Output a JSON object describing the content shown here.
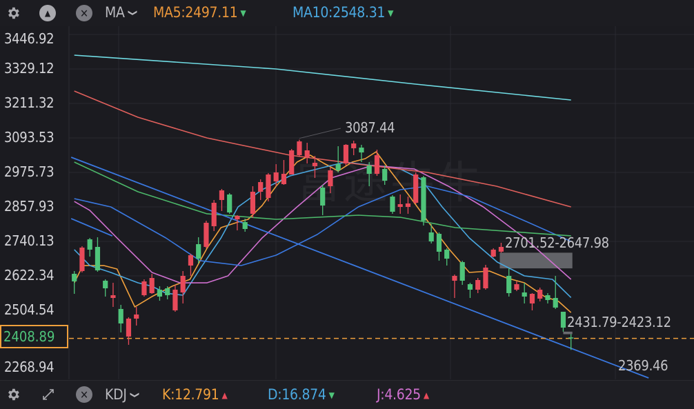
{
  "top_bar": {
    "indicator_label": "MA",
    "ma5": {
      "label": "MA5:2497.11",
      "trend": "down",
      "color": "#e8953a"
    },
    "ma10": {
      "label": "MA10:2548.31",
      "trend": "down",
      "color": "#4aa8e0"
    }
  },
  "bottom_bar": {
    "indicator_label": "KDJ",
    "k": {
      "label": "K:12.791",
      "trend": "up",
      "color": "#f0a03c"
    },
    "d": {
      "label": "D:16.874",
      "trend": "down",
      "color": "#4aa8e0"
    },
    "j": {
      "label": "J:4.625",
      "trend": "up",
      "color": "#d070d0"
    }
  },
  "watermark": "富途牛牛",
  "colors": {
    "up": "#e84a5a",
    "down": "#4fc47a",
    "background": "#1b1b20",
    "current_price": "#f0a03c"
  },
  "chart_data": {
    "type": "candlestick",
    "y_axis_ticks": [
      "3446.92",
      "3329.12",
      "3211.32",
      "3093.53",
      "2975.73",
      "2857.93",
      "2740.13",
      "2622.34",
      "2504.54",
      "2268.94"
    ],
    "ylim": [
      2268.94,
      3446.92
    ],
    "current_price": "2408.89",
    "grid": true,
    "annotations": {
      "high": "3087.44",
      "gap_upper": "2701.52-2647.98",
      "gap_lower": "2431.79-2423.12",
      "low": "2369.46"
    },
    "candles": [
      [
        2629.4,
        2603.5,
        2638.8,
        2561.0
      ],
      [
        2638.8,
        2718.9,
        2723.6,
        2634.1
      ],
      [
        2747.2,
        2711.9,
        2751.9,
        2688.3
      ],
      [
        2721.3,
        2641.1,
        2754.3,
        2636.4
      ],
      [
        2605.8,
        2579.9,
        2610.5,
        2551.6
      ],
      [
        2546.9,
        2556.3,
        2598.7,
        2516.3
      ],
      [
        2509.3,
        2459.8,
        2523.4,
        2429.2
      ],
      [
        2415.1,
        2476.3,
        2481.0,
        2386.8
      ],
      [
        2476.3,
        2490.4,
        2516.3,
        2452.7
      ],
      [
        2556.3,
        2603.5,
        2610.5,
        2551.6
      ],
      [
        2563.4,
        2615.2,
        2629.4,
        2561.0
      ],
      [
        2575.2,
        2551.6,
        2586.9,
        2537.5
      ],
      [
        2579.9,
        2556.3,
        2586.9,
        2542.2
      ],
      [
        2504.5,
        2575.2,
        2591.6,
        2499.8
      ],
      [
        2565.7,
        2622.3,
        2638.8,
        2528.1
      ],
      [
        2657.6,
        2693.0,
        2697.8,
        2622.3
      ],
      [
        2730.7,
        2681.2,
        2754.3,
        2664.7
      ],
      [
        2721.3,
        2803.7,
        2810.8,
        2716.6
      ],
      [
        2791.9,
        2872.0,
        2881.5,
        2775.4
      ],
      [
        2881.5,
        2914.4,
        2919.2,
        2843.8
      ],
      [
        2900.3,
        2839.1,
        2905.0,
        2834.4
      ],
      [
        2815.5,
        2827.3,
        2829.6,
        2777.8
      ],
      [
        2806.1,
        2782.5,
        2817.9,
        2773.1
      ],
      [
        2834.4,
        2909.7,
        2928.6,
        2820.2
      ],
      [
        2909.7,
        2942.7,
        2952.1,
        2881.5
      ],
      [
        2888.5,
        2968.6,
        2973.3,
        2876.7
      ],
      [
        2945.1,
        2975.7,
        3004.0,
        2928.6
      ],
      [
        2935.7,
        2971.0,
        3018.1,
        2933.3
      ],
      [
        2968.6,
        3051.1,
        3055.8,
        2968.6
      ],
      [
        3034.6,
        3081.7,
        3087.44,
        3032.2
      ],
      [
        3027.5,
        3051.1,
        3077.0,
        3006.3
      ],
      [
        2996.9,
        3008.7,
        3032.2,
        2956.9
      ],
      [
        2923.9,
        2862.6,
        2933.3,
        2829.6
      ],
      [
        2928.6,
        2982.8,
        2992.2,
        2905.0
      ],
      [
        3004.0,
        2982.8,
        3065.2,
        2975.7
      ],
      [
        3006.3,
        3070.0,
        3072.3,
        2999.3
      ],
      [
        3058.2,
        3074.7,
        3084.1,
        3034.6
      ],
      [
        3060.5,
        3044.0,
        3070.0,
        3011.0
      ],
      [
        2999.3,
        2971.0,
        3011.0,
        2928.6
      ],
      [
        2971.0,
        3034.6,
        3053.4,
        2963.9
      ],
      [
        2987.5,
        2947.4,
        2999.3,
        2933.3
      ],
      [
        2893.2,
        2841.4,
        2898.0,
        2834.4
      ],
      [
        2857.9,
        2867.3,
        2900.3,
        2834.4
      ],
      [
        2857.9,
        2869.7,
        2893.2,
        2834.4
      ],
      [
        2872.0,
        2968.6,
        2975.7,
        2867.3
      ],
      [
        2959.2,
        2810.8,
        2963.9,
        2794.3
      ],
      [
        2770.7,
        2740.1,
        2799.0,
        2733.1
      ],
      [
        2766.0,
        2704.8,
        2770.7,
        2674.2
      ],
      [
        2711.9,
        2681.2,
        2716.6,
        2657.6
      ],
      [
        2605.8,
        2622.3,
        2627.0,
        2546.9
      ],
      [
        2669.4,
        2605.8,
        2674.2,
        2591.6
      ],
      [
        2594.0,
        2575.2,
        2598.7,
        2546.9
      ],
      [
        2575.2,
        2608.2,
        2615.2,
        2563.4
      ],
      [
        2579.9,
        2650.6,
        2660.0,
        2575.2
      ],
      [
        2688.3,
        2711.9,
        2716.6,
        2686.0
      ],
      [
        2705.0,
        2721.3,
        2735.4,
        2701.52
      ],
      [
        2622.3,
        2563.4,
        2647.98,
        2551.6
      ],
      [
        2575.2,
        2594.0,
        2603.5,
        2570.4
      ],
      [
        2565.7,
        2551.6,
        2598.7,
        2528.1
      ],
      [
        2528.1,
        2561.0,
        2563.4,
        2504.5
      ],
      [
        2544.6,
        2575.2,
        2582.2,
        2535.1
      ],
      [
        2556.3,
        2539.8,
        2563.4,
        2528.1
      ],
      [
        2546.9,
        2514.0,
        2622.3,
        2509.3
      ],
      [
        2499.8,
        2445.6,
        2499.8,
        2431.79
      ],
      [
        2412.0,
        2408.89,
        2423.12,
        2369.46
      ]
    ],
    "candle_fields": [
      "open",
      "close",
      "high",
      "low"
    ],
    "series": [
      {
        "name": "MA5",
        "color": "#f0a03c",
        "points": [
          [
            0,
            2598.7
          ],
          [
            1.1,
            2657.6
          ],
          [
            3.8,
            2657.6
          ],
          [
            5.5,
            2645.9
          ],
          [
            7.8,
            2516.3
          ],
          [
            10,
            2551.6
          ],
          [
            12.6,
            2586.9
          ],
          [
            14.9,
            2610.5
          ],
          [
            17.1,
            2716.6
          ],
          [
            18.9,
            2787.2
          ],
          [
            21.1,
            2806.1
          ],
          [
            22.4,
            2815.5
          ],
          [
            24.2,
            2862.6
          ],
          [
            26,
            2928.6
          ],
          [
            28.7,
            3011.0
          ],
          [
            30.4,
            3034.6
          ],
          [
            32.2,
            3006.3
          ],
          [
            34,
            2980.4
          ],
          [
            35.8,
            3011.0
          ],
          [
            37.5,
            3022.8
          ],
          [
            38.9,
            3046.4
          ],
          [
            40.2,
            2999.3
          ],
          [
            42.9,
            2905.0
          ],
          [
            45.5,
            2810.8
          ],
          [
            48.2,
            2716.6
          ],
          [
            50.9,
            2634.1
          ],
          [
            53.5,
            2638.8
          ],
          [
            55.7,
            2615.2
          ],
          [
            58,
            2598.7
          ],
          [
            60.6,
            2551.6
          ],
          [
            62.4,
            2535.1
          ],
          [
            64,
            2497.11
          ]
        ]
      },
      {
        "name": "MA10",
        "color": "#4aa8e0",
        "points": [
          [
            0,
            2711.9
          ],
          [
            2,
            2657.6
          ],
          [
            4.7,
            2634.1
          ],
          [
            8.2,
            2598.7
          ],
          [
            10,
            2586.9
          ],
          [
            11.8,
            2563.4
          ],
          [
            14,
            2556.3
          ],
          [
            16.2,
            2645.9
          ],
          [
            18.9,
            2751.9
          ],
          [
            21.1,
            2857.9
          ],
          [
            24.2,
            2916.8
          ],
          [
            27.8,
            2963.9
          ],
          [
            31.3,
            2987.5
          ],
          [
            34.9,
            3011.0
          ],
          [
            38.4,
            2999.3
          ],
          [
            42,
            2987.5
          ],
          [
            44.7,
            2952.1
          ],
          [
            47.4,
            2857.9
          ],
          [
            50.9,
            2751.9
          ],
          [
            54.5,
            2669.4
          ],
          [
            58,
            2622.3
          ],
          [
            61.6,
            2610.5
          ],
          [
            64,
            2548.31
          ]
        ]
      },
      {
        "color": "#d070d0",
        "points": [
          [
            0,
            2876.7
          ],
          [
            2,
            2846.1
          ],
          [
            5.5,
            2751.9
          ],
          [
            10,
            2634.1
          ],
          [
            13.6,
            2598.7
          ],
          [
            17.1,
            2598.7
          ],
          [
            19.8,
            2622.3
          ],
          [
            24.2,
            2751.9
          ],
          [
            28.7,
            2857.9
          ],
          [
            33.1,
            2956.9
          ],
          [
            38.4,
            2999.3
          ],
          [
            43.8,
            2987.5
          ],
          [
            48.2,
            2928.6
          ],
          [
            52.7,
            2857.9
          ],
          [
            58,
            2751.9
          ],
          [
            64,
            2610.5
          ]
        ]
      },
      {
        "color": "#3a78e0",
        "points": [
          [
            0,
            2886.2
          ],
          [
            4.7,
            2857.9
          ],
          [
            11.8,
            2751.9
          ],
          [
            16.2,
            2674.2
          ],
          [
            21.5,
            2657.6
          ],
          [
            26,
            2693.0
          ],
          [
            31.3,
            2763.7
          ],
          [
            36.6,
            2857.9
          ],
          [
            42,
            2916.8
          ],
          [
            45.5,
            2928.6
          ],
          [
            50.9,
            2893.2
          ],
          [
            58,
            2810.8
          ],
          [
            64,
            2740.1
          ]
        ]
      },
      {
        "color": "#4cb86a",
        "points": [
          [
            0,
            3011.0
          ],
          [
            8.2,
            2909.7
          ],
          [
            17.1,
            2834.4
          ],
          [
            26,
            2815.5
          ],
          [
            36.6,
            2829.6
          ],
          [
            42,
            2822.5
          ],
          [
            49.1,
            2787.2
          ],
          [
            64,
            2759.0
          ]
        ]
      },
      {
        "color": "#e0605c",
        "points": [
          [
            0,
            3253.7
          ],
          [
            8.2,
            3164.2
          ],
          [
            17.1,
            3093.5
          ],
          [
            27.8,
            3034.6
          ],
          [
            36.6,
            3004.0
          ],
          [
            45.5,
            2975.7
          ],
          [
            54.4,
            2928.6
          ],
          [
            64,
            2857.9
          ]
        ]
      },
      {
        "color": "#70dce4",
        "points": [
          [
            0,
            3376.2
          ],
          [
            26,
            3329.1
          ],
          [
            44,
            3277.3
          ],
          [
            64,
            3223.1
          ]
        ]
      }
    ],
    "trendlines": [
      {
        "color": "#3a78e0",
        "points": [
          [
            -0.4,
            3027.5
          ],
          [
            74,
            2273.6
          ]
        ]
      },
      {
        "color": "#3a78e0",
        "points": [
          [
            -0.4,
            2817.9
          ],
          [
            4.9,
            2758.9
          ]
        ]
      }
    ]
  }
}
